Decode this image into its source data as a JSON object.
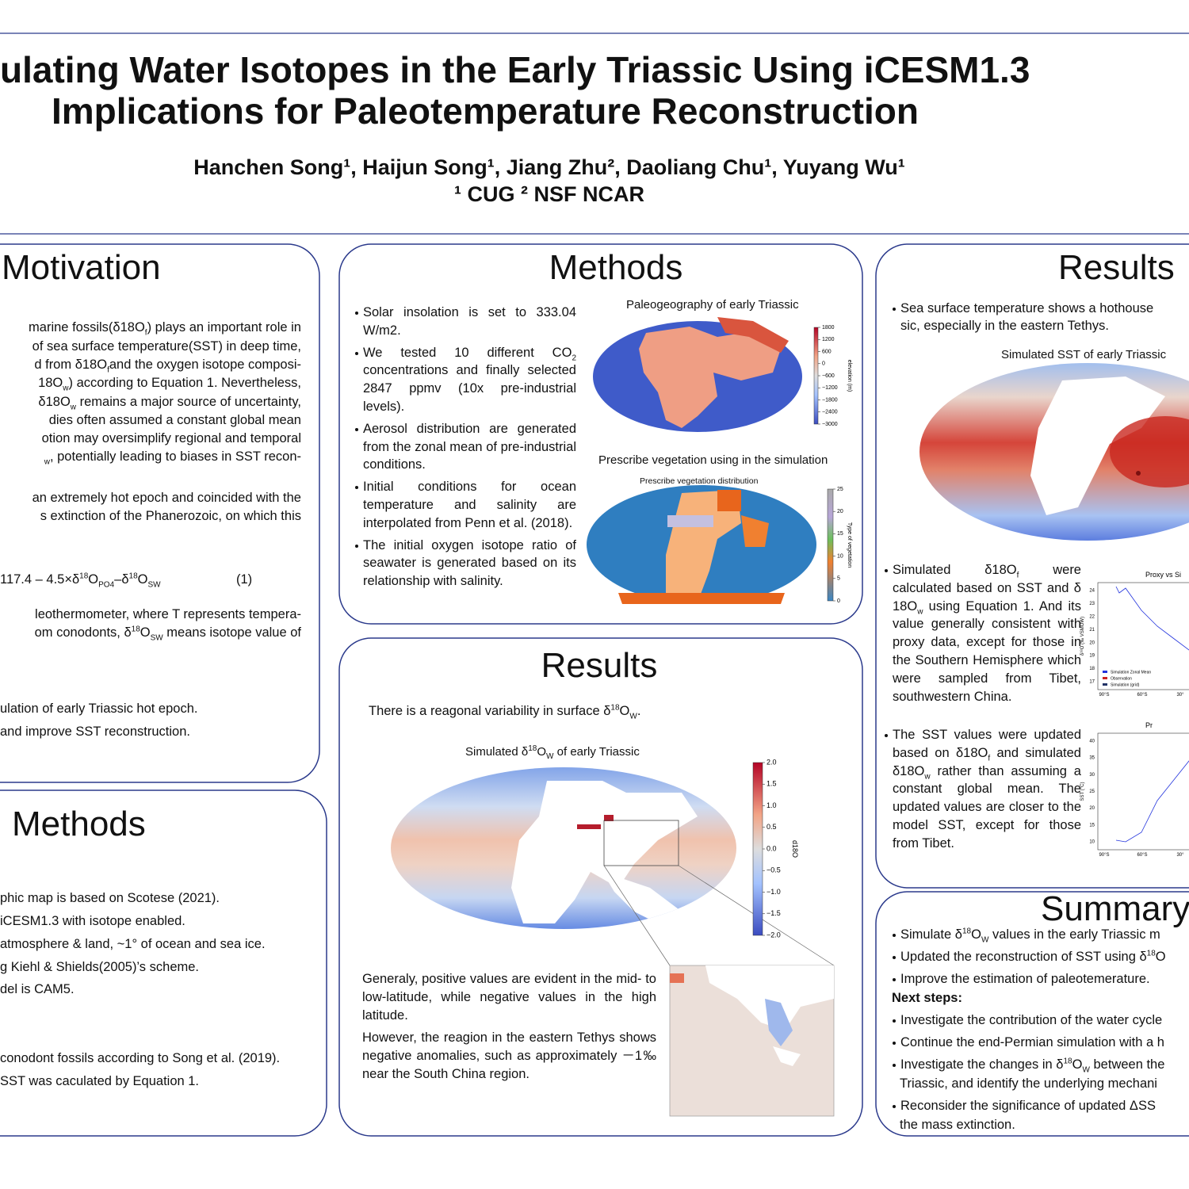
{
  "header": {
    "title_lines": [
      "ulating Water Isotopes in the Early Triassic Using iCESM1.3",
      "Implications for Paleotemperature Reconstruction"
    ],
    "authors": "Hanchen Song¹, Haijun Song¹, Jiang Zhu², Daoliang Chu¹, Yuyang Wu¹",
    "affiliations": "¹ CUG ² NSF NCAR"
  },
  "motivation": {
    "heading": "Motivation",
    "lines": [
      [
        "marine fossils(δ18O",
        {
          "sub": "f"
        },
        ") plays an important role in"
      ],
      [
        "of sea surface temperature(SST) in deep time,"
      ],
      [
        "d from δ18O",
        {
          "sub": "f"
        },
        "and the oxygen isotope composi-"
      ],
      [
        "18O",
        {
          "sub": "w"
        },
        ")  according to Equation 1. Nevertheless,"
      ],
      [
        "δ18O",
        {
          "sub": "w"
        },
        " remains a major source of uncertainty,"
      ],
      [
        "dies often assumed a constant global mean"
      ],
      [
        "otion may oversimplify regional and temporal"
      ],
      [
        {
          "sub": "w"
        },
        ", potentially leading to biases in SST recon-"
      ],
      [
        "an extremely hot epoch and coincided with the"
      ],
      [
        "s extinction of the Phanerozoic, on which this"
      ],
      [
        "leothermometer, where T represents tempera-"
      ],
      [
        "om conodonts, δ",
        {
          "sup": "18"
        },
        "O",
        {
          "sub": "SW"
        },
        " means isotope value of"
      ],
      [
        "ulation of early Triassic hot epoch."
      ],
      [
        "and improve SST reconstruction."
      ]
    ],
    "equation": [
      "117.4 – 4.5×δ",
      {
        "sup": "18"
      },
      "O",
      {
        "sub": "PO4"
      },
      "–δ",
      {
        "sup": "18"
      },
      "O",
      {
        "sub": "SW"
      }
    ],
    "equation_number": "(1)"
  },
  "methods_left": {
    "heading": "Methods",
    "lines": [
      "phic map is based on Scotese (2021).",
      " iCESM1.3 with isotope enabled.",
      "atmosphere & land, ~1° of ocean and sea ice.",
      "g Kiehl & Shields(2005)’s scheme.",
      "del is CAM5.",
      "conodont fossils according to Song et al. (2019).",
      " SST was caculated by Equation 1."
    ]
  },
  "methods": {
    "heading": "Methods",
    "bullets": [
      [
        "Solar insolation is set to 333.04 W/m2."
      ],
      [
        "We tested 10 different CO",
        {
          "sub": "2"
        },
        " concentrations and finally selected 2847 ppmv (10x pre-industrial levels)."
      ],
      [
        "Aerosol distribution are generated from the zonal mean of pre-industrial conditions."
      ],
      [
        "Initial conditions for ocean temperature and salinity are interpolated from Penn et al. (2018)."
      ],
      [
        "The initial oxygen isotope ratio of seawater is generated based on its relationship with salinity."
      ]
    ],
    "figures": [
      {
        "caption": "Paleogeography of early Triassic",
        "colorbar_ticks": [
          "1800",
          "1200",
          "600",
          "0",
          "−600",
          "−1200",
          "−1800",
          "−2400",
          "−3000"
        ],
        "colorbar_label": "elevation (m)"
      },
      {
        "caption": "Prescribe vegetation using in the simulation",
        "inner_title": "Prescribe vegetation distribution",
        "colorbar_ticks": [
          "25",
          "20",
          "15",
          "10",
          "5",
          "0"
        ],
        "colorbar_label": "Type of vegetation"
      }
    ]
  },
  "results_center": {
    "heading": "Results",
    "intro": [
      "There is a reagonal variability in surface δ",
      {
        "sup": "18"
      },
      "O",
      {
        "sub": "W"
      },
      "."
    ],
    "figure": {
      "title": [
        "Simulated δ",
        {
          "sup": "18"
        },
        "O",
        {
          "sub": "W"
        },
        " of early Triassic"
      ],
      "colorbar_ticks": [
        "2.0",
        "1.5",
        "1.0",
        "0.5",
        "0.0",
        "−0.5",
        "−1.0",
        "−1.5",
        "−2.0"
      ],
      "colorbar_label": "d18O"
    },
    "paragraphs": [
      "Generaly, positive values are evident in the mid- to low-latitude, while negative values in the high latitude.",
      "However, the reagion in the eastern Tethys shows negative anomalies, such as approximately －1‰ near the South China region."
    ]
  },
  "results_right": {
    "heading": "Results",
    "intro_lines": [
      "Sea surface temperature shows a hothouse",
      "sic, especially in the eastern Tethys."
    ],
    "figure": {
      "title": "Simulated SST of early Triassic"
    },
    "bullets": [
      [
        "Simulated δ18O",
        {
          "sub": "f"
        },
        " were calculated based on SST and δ 18O",
        {
          "sub": "w"
        },
        " using Equation 1. And its value generally consistent with proxy data, except for those in the Southern Hemisphere which were sampled from Tibet, southwestern China."
      ],
      [
        "The SST values were updated based on  δ18O",
        {
          "sub": "f"
        },
        " and simulated δ18O",
        {
          "sub": "w"
        },
        " rather than assuming a constant global mean. The updated values are closer to the model SST, except for those from Tibet."
      ]
    ],
    "plots": [
      {
        "title": "Proxy vs Si",
        "ylabel": "δ¹⁸O (‰ VSMOW)",
        "yticks": [
          "24",
          "23",
          "22",
          "21",
          "20",
          "19",
          "18",
          "17"
        ],
        "xticks": [
          "90°S",
          "60°S",
          "30°"
        ],
        "legend": [
          "Simulation Zonal Mean",
          "Observation",
          "Simulation (grid)"
        ]
      },
      {
        "title": "Pr",
        "ylabel": "SST (°C)",
        "yticks": [
          "40",
          "35",
          "30",
          "25",
          "20",
          "15",
          "10"
        ],
        "xticks": [
          "90°S",
          "60°S",
          "30°"
        ]
      }
    ]
  },
  "summary": {
    "heading": "Summary",
    "bullets": [
      [
        [
          "Simulate δ",
          {
            "sup": "18"
          },
          "O",
          {
            "sub": "W"
          },
          " values in the early Triassic m"
        ]
      ],
      [
        [
          "Updated the reconstruction of SST using δ",
          {
            "sup": "18"
          },
          "O"
        ]
      ],
      [
        [
          "Improve the estimation of paleotemerature."
        ]
      ]
    ],
    "next_steps_label": "Next steps:",
    "next_steps": [
      [
        [
          "Investigate the contribution of the water cycle"
        ]
      ],
      [
        [
          "Continue the end-Permian simulation with a h"
        ]
      ],
      [
        [
          "Investigate the changes in δ",
          {
            "sup": "18"
          },
          "O",
          {
            "sub": "W"
          },
          " between the"
        ],
        [
          "Triassic, and identify the underlying mechani"
        ]
      ],
      [
        [
          "Reconsider the significance of updated ΔSS"
        ],
        [
          "the mass extinction."
        ]
      ]
    ]
  }
}
